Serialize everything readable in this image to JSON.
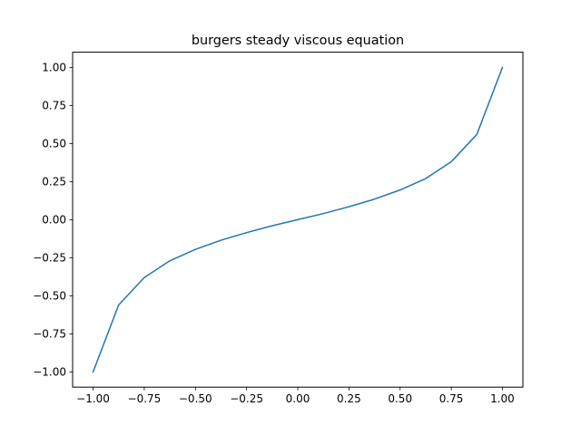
{
  "chart_data": {
    "type": "line",
    "title": "burgers steady viscous equation",
    "xlabel": "",
    "ylabel": "",
    "xlim": [
      -1.1,
      1.1
    ],
    "ylim": [
      -1.1,
      1.1
    ],
    "xticks": [
      -1.0,
      -0.75,
      -0.5,
      -0.25,
      0.0,
      0.25,
      0.5,
      0.75,
      1.0
    ],
    "xtick_labels": [
      "−1.00",
      "−0.75",
      "−0.50",
      "−0.25",
      "0.00",
      "0.25",
      "0.50",
      "0.75",
      "1.00"
    ],
    "yticks": [
      -1.0,
      -0.75,
      -0.5,
      -0.25,
      0.0,
      0.25,
      0.5,
      0.75,
      1.0
    ],
    "ytick_labels": [
      "−1.00",
      "−0.75",
      "−0.50",
      "−0.25",
      "0.00",
      "0.25",
      "0.50",
      "0.75",
      "1.00"
    ],
    "grid": false,
    "series": [
      {
        "color": "#1f77b4",
        "x": [
          -1.0,
          -0.875,
          -0.75,
          -0.625,
          -0.5,
          -0.375,
          -0.25,
          -0.125,
          0.0,
          0.125,
          0.25,
          0.375,
          0.5,
          0.625,
          0.75,
          0.875,
          1.0
        ],
        "y": [
          -1.0,
          -0.56,
          -0.38,
          -0.27,
          -0.195,
          -0.135,
          -0.085,
          -0.04,
          0.0,
          0.04,
          0.085,
          0.135,
          0.195,
          0.27,
          0.38,
          0.56,
          1.0
        ]
      }
    ]
  }
}
